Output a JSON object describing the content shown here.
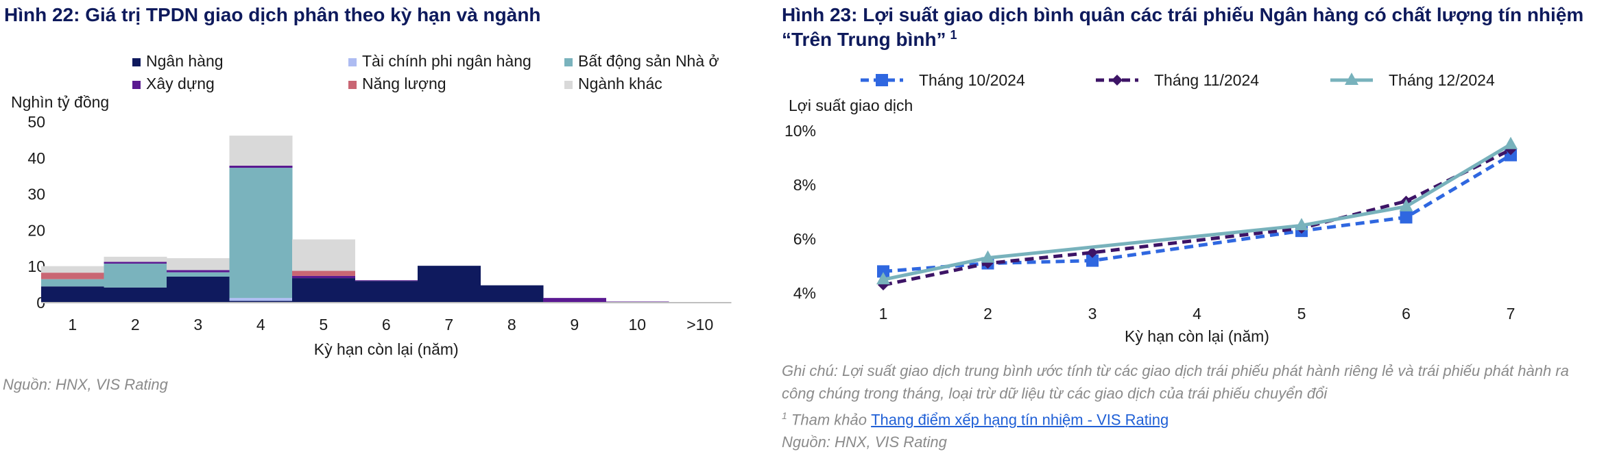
{
  "left": {
    "title": "Hình 22: Giá trị TPDN giao dịch phân theo kỳ hạn và ngành",
    "source": "Nguồn: HNX, VIS Rating"
  },
  "right": {
    "title_line1": "Hình 23: Lợi suất giao dịch bình quân các trái phiếu Ngân hàng có chất lượng tín nhiệm",
    "title_line2": "“Trên Trung bình”",
    "title_sup": "1",
    "note_line1": "Ghi chú: Lợi suất giao dịch trung bình ước tính từ các giao dịch trái phiếu phát hành riêng lẻ và trái phiếu phát hành ra",
    "note_line2": "công chúng trong tháng, loại trừ dữ liệu từ các giao dịch của trái phiếu chuyển đổi",
    "ref_sup": "1",
    "ref_prefix": "Tham khảo",
    "ref_link": "Thang điểm xếp hạng tín nhiệm - VIS Rating",
    "source": "Nguồn: HNX, VIS Rating"
  },
  "chart_data": [
    {
      "type": "bar",
      "stacked": true,
      "title": "",
      "xlabel": "Kỳ hạn còn lại (năm)",
      "ylabel": "Nghìn tỷ đồng",
      "ylim": [
        0,
        50
      ],
      "yticks": [
        0,
        10,
        20,
        30,
        40,
        50
      ],
      "grid": false,
      "legend_position": "top",
      "categories": [
        "1",
        "2",
        "3",
        "4",
        "5",
        "6",
        "7",
        "8",
        "9",
        "10",
        ">10"
      ],
      "series": [
        {
          "name": "Ngân hàng",
          "color": "#0f1a5e",
          "values": [
            4.5,
            4.2,
            7.2,
            0.5,
            6.8,
            6.0,
            10.2,
            4.8,
            0,
            0,
            0
          ]
        },
        {
          "name": "Tài chính phi ngân hàng",
          "color": "#aebcf2",
          "values": [
            0,
            0,
            0,
            0.8,
            0,
            0,
            0,
            0,
            0,
            0,
            0
          ]
        },
        {
          "name": "Bất động sản Nhà ở",
          "color": "#7ab3bd",
          "values": [
            2.0,
            6.6,
            1.2,
            36.0,
            0,
            0,
            0,
            0,
            0,
            0,
            0
          ]
        },
        {
          "name": "Xây dựng",
          "color": "#5a1991",
          "values": [
            0,
            0.5,
            0.6,
            0.6,
            0.6,
            0.2,
            0,
            0,
            1.3,
            0.3,
            0
          ]
        },
        {
          "name": "Năng lượng",
          "color": "#c96673",
          "values": [
            1.8,
            0,
            0,
            0,
            1.4,
            0,
            0,
            0,
            0,
            0,
            0
          ]
        },
        {
          "name": "Ngành khác",
          "color": "#d9d9d9",
          "values": [
            1.8,
            1.4,
            3.3,
            8.3,
            8.7,
            0,
            0,
            0,
            0,
            0,
            0
          ]
        }
      ]
    },
    {
      "type": "line",
      "title": "",
      "xlabel": "Kỳ hạn còn lại (năm)",
      "ylabel": "Lợi suất giao dịch",
      "ylim": [
        4,
        10
      ],
      "yticks": [
        4,
        6,
        8,
        10
      ],
      "ytick_suffix": "%",
      "grid": false,
      "legend_position": "top",
      "x": [
        1,
        2,
        3,
        4,
        5,
        6,
        7
      ],
      "series": [
        {
          "name": "Tháng 10/2024",
          "color": "#2f67e0",
          "dash": "dashed",
          "marker": "square",
          "values": [
            4.8,
            5.1,
            5.2,
            null,
            6.3,
            6.8,
            9.1
          ]
        },
        {
          "name": "Tháng 11/2024",
          "color": "#3d1466",
          "dash": "dashed",
          "marker": "diamond",
          "values": [
            4.3,
            5.1,
            5.5,
            null,
            6.4,
            7.4,
            9.3
          ]
        },
        {
          "name": "Tháng 12/2024",
          "color": "#78b2bc",
          "dash": "solid",
          "marker": "triangle",
          "values": [
            4.5,
            5.3,
            null,
            null,
            6.5,
            7.2,
            9.5
          ]
        }
      ]
    }
  ]
}
